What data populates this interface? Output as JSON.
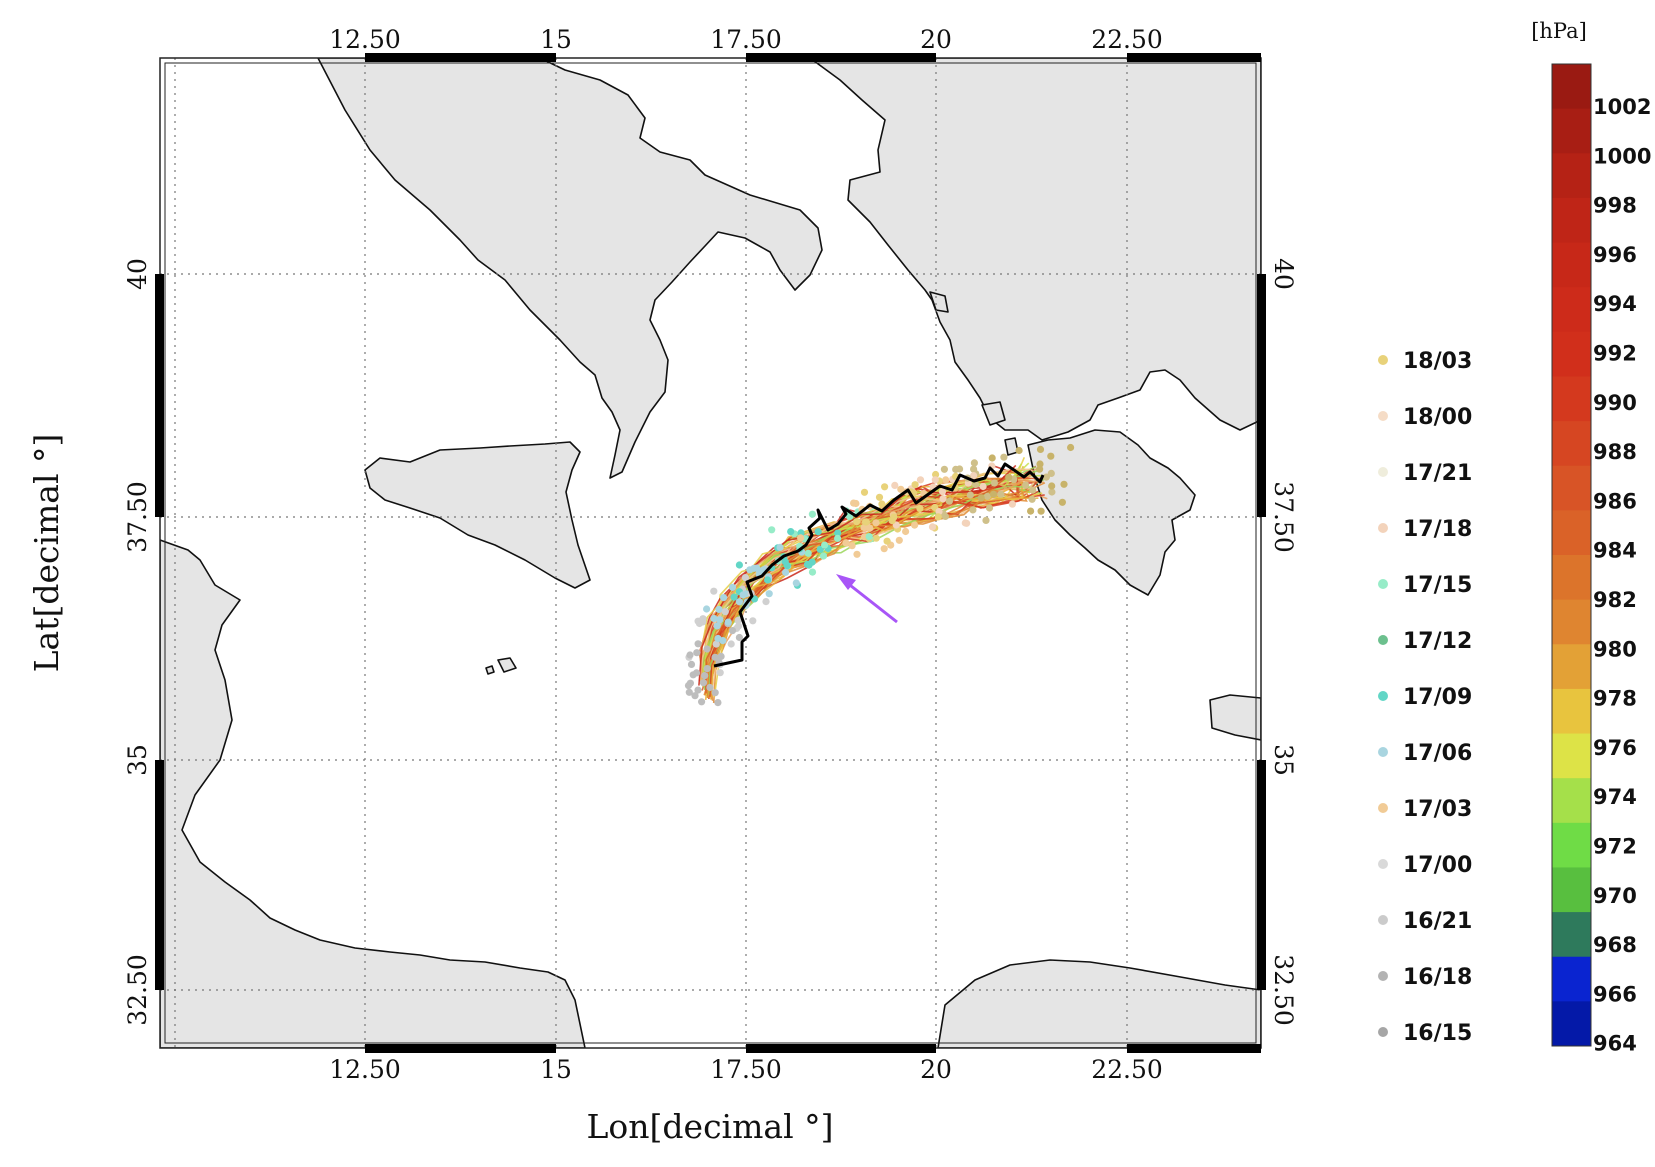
{
  "map": {
    "lon_range": [
      10.0,
      24.5
    ],
    "lat_range": [
      31.8,
      44.6
    ],
    "lon_ticks": [
      {
        "value": 12.5,
        "label": "12.50"
      },
      {
        "value": 15,
        "label": "15"
      },
      {
        "value": 17.5,
        "label": "17.50"
      },
      {
        "value": 20,
        "label": "20"
      },
      {
        "value": 22.5,
        "label": "22.50"
      }
    ],
    "lat_ticks": [
      {
        "value": 40,
        "label": "40"
      },
      {
        "value": 37.5,
        "label": "37.50"
      },
      {
        "value": 35,
        "label": "35"
      },
      {
        "value": 32.5,
        "label": "32.50"
      }
    ],
    "xlabel": "Lon[decimal °]",
    "ylabel": "Lat[decimal °]",
    "grid": true,
    "land_color": "#e5e5e5",
    "coastline_color": "#111111",
    "annotation_arrow_color": "#a855f7"
  },
  "track_legend": [
    {
      "label": "18/03",
      "color": "#e8d27a"
    },
    {
      "label": "18/00",
      "color": "#f5dcc6"
    },
    {
      "label": "17/21",
      "color": "#efeddc"
    },
    {
      "label": "17/18",
      "color": "#f3d3bb"
    },
    {
      "label": "17/15",
      "color": "#97ecc8"
    },
    {
      "label": "17/12",
      "color": "#6cc08e"
    },
    {
      "label": "17/09",
      "color": "#62d6c6"
    },
    {
      "label": "17/06",
      "color": "#a9d5e0"
    },
    {
      "label": "17/03",
      "color": "#f1cb96"
    },
    {
      "label": "17/00",
      "color": "#d9d9d9"
    },
    {
      "label": "16/21",
      "color": "#cbcbcb"
    },
    {
      "label": "16/18",
      "color": "#b3b3b3"
    },
    {
      "label": "16/15",
      "color": "#a6a6a6"
    }
  ],
  "colorbar": {
    "unit": "[hPa]",
    "labels": [
      "1002",
      "1000",
      "998",
      "996",
      "994",
      "992",
      "990",
      "988",
      "986",
      "984",
      "982",
      "980",
      "978",
      "976",
      "974",
      "972",
      "970",
      "968",
      "966",
      "964"
    ],
    "colors": [
      "#9a1a12",
      "#a81e14",
      "#b52215",
      "#bf2517",
      "#c72818",
      "#cd2b1a",
      "#d12f1b",
      "#d4391e",
      "#d64622",
      "#d85426",
      "#da6228",
      "#dc742b",
      "#df8530",
      "#e3a136",
      "#e8c43e",
      "#dde347",
      "#a5e04a",
      "#6fdc46",
      "#58bf3f",
      "#2e7a5c",
      "#0a24d0",
      "#0419a8"
    ]
  }
}
